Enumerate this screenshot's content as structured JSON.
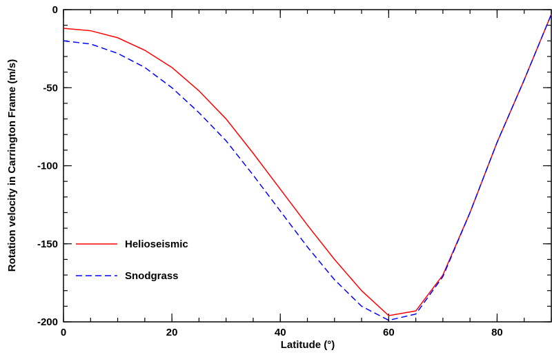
{
  "chart_data": {
    "type": "line",
    "xlabel": "Latitude (°)",
    "ylabel": "Rotation velocity in Carrington Frame (m/s)",
    "x": [
      0,
      5,
      10,
      15,
      20,
      25,
      30,
      35,
      40,
      45,
      50,
      55,
      60,
      65,
      70,
      75,
      80,
      85,
      90
    ],
    "series": [
      {
        "name": "Helioseismic",
        "color": "#ff0000",
        "dash": false,
        "values": [
          -12,
          -13.5,
          -18,
          -26,
          -37,
          -52,
          -70,
          -92,
          -115,
          -138,
          -160,
          -180,
          -196,
          -193,
          -170,
          -130,
          -85,
          -45,
          -3
        ]
      },
      {
        "name": "Snodgrass",
        "color": "#0000ff",
        "dash": true,
        "values": [
          -20,
          -22,
          -28,
          -37,
          -50,
          -66,
          -84,
          -106,
          -129,
          -152,
          -173,
          -190,
          -199,
          -195,
          -171,
          -130,
          -85,
          -45,
          -3
        ]
      }
    ],
    "xlim": [
      0,
      90
    ],
    "ylim": [
      -200,
      0
    ],
    "xticks": [
      0,
      20,
      40,
      60,
      80
    ],
    "yticks": [
      0,
      -50,
      -100,
      -150,
      -200
    ],
    "legend": "lower left"
  }
}
